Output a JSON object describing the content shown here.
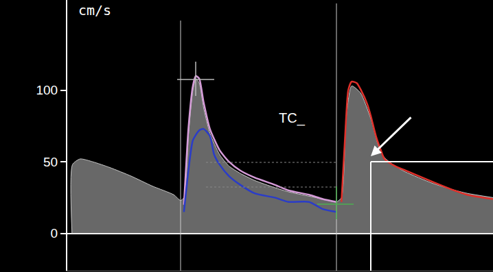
{
  "chart_data": {
    "type": "line",
    "y_label": "cm/s",
    "xlim": [
      0,
      100
    ],
    "ylim": [
      -26,
      163
    ],
    "yticks": [
      0,
      50,
      100
    ],
    "grid": false,
    "tick_labels": "y",
    "annotations": [
      "TC_"
    ],
    "series": [
      {
        "type": "area",
        "color": "#c8c8c8",
        "x": [
          1.1,
          1.2,
          3,
          6,
          10,
          15,
          20,
          25,
          26.6,
          27.4,
          28.5,
          29.5,
          30.2,
          31,
          32,
          33.5,
          35.8,
          38,
          40.6,
          44,
          48.7,
          52,
          56.8,
          60,
          63.2,
          64.4,
          65.5,
          66.8,
          68.9,
          71.3,
          73,
          74.5,
          77,
          79.4,
          85.8,
          90,
          93.9,
          100
        ],
        "values": [
          0,
          48,
          52,
          50,
          46,
          40,
          33,
          27,
          23,
          25,
          70,
          100,
          108,
          105,
          88,
          70,
          55,
          47,
          42,
          37,
          32,
          29,
          26,
          24,
          22,
          25,
          80,
          103,
          98,
          80,
          62,
          53,
          47,
          43,
          35,
          31,
          28,
          25
        ]
      },
      {
        "type": "line",
        "color": "#d59bd8",
        "x": [
          27.4,
          28.5,
          29.5,
          30.2,
          31,
          32,
          33.5,
          35.8,
          38,
          40.6,
          44,
          48.7,
          52,
          56.8,
          60,
          63.2
        ],
        "values": [
          20,
          75,
          103,
          110,
          108,
          92,
          73,
          58,
          50,
          44,
          39,
          34,
          30,
          27,
          24,
          22
        ]
      },
      {
        "type": "line",
        "color": "#2a3cc8",
        "x": [
          27.4,
          28.5,
          29.5,
          31,
          32,
          33.5,
          34.5,
          35.8,
          38,
          40.6,
          44,
          48.7,
          52,
          56.8,
          60,
          63.2
        ],
        "values": [
          15,
          45,
          65,
          72,
          73,
          68,
          55,
          48,
          40,
          34,
          28,
          25,
          22,
          22,
          17,
          15
        ]
      },
      {
        "type": "line",
        "color": "#e0302a",
        "x": [
          64.4,
          65.3,
          66,
          66.8,
          68,
          69,
          70.5,
          71.3,
          72.5,
          73.8,
          74.5,
          77,
          79.4,
          85.8,
          90,
          93.9,
          100
        ],
        "values": [
          22,
          70,
          100,
          106,
          105,
          100,
          90,
          82,
          68,
          57,
          52,
          47,
          44,
          36,
          31,
          27,
          24
        ]
      }
    ]
  }
}
